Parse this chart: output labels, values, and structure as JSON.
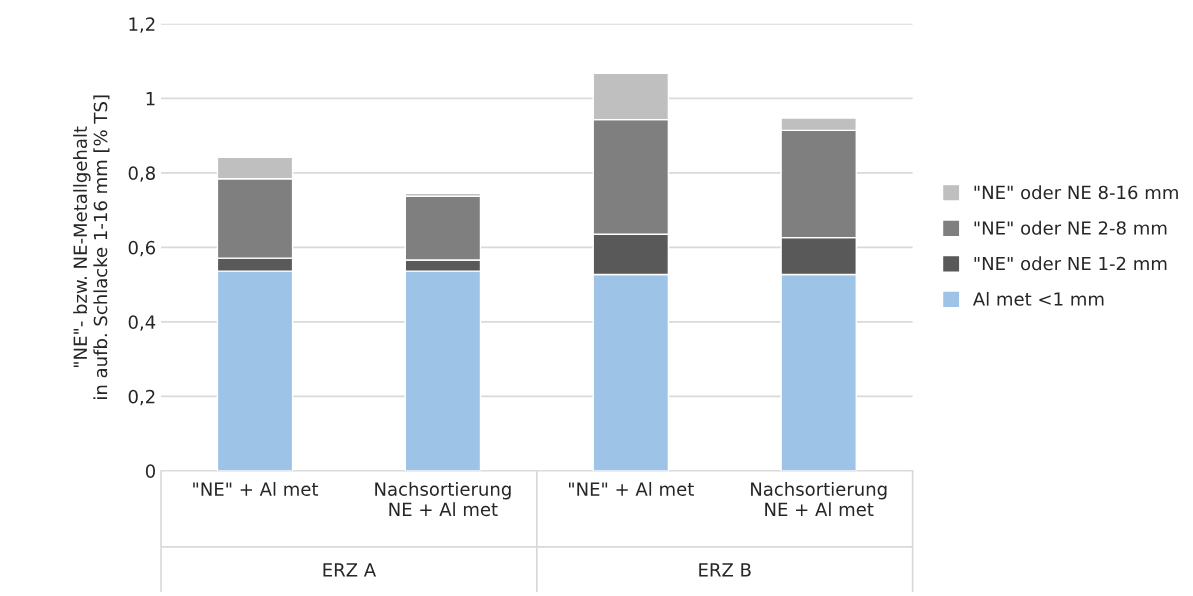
{
  "chart_data": {
    "type": "bar",
    "stacked": true,
    "ylabel": "\"NE\"- bzw. NE-Metallgehalt\nin aufb. Schlacke 1-16 mm [% TS]",
    "categories": [
      "\"NE\" + Al met",
      "Nachsortierung\nNE + Al met",
      "\"NE\" + Al met",
      "Nachsortierung\nNE + Al met"
    ],
    "annotations": [
      "ERZ A",
      "ERZ B"
    ],
    "series": [
      {
        "name": "Al met <1 mm",
        "color": "#9dc3e6",
        "values": [
          0.536,
          0.536,
          0.527,
          0.527
        ]
      },
      {
        "name": "\"NE\" oder NE 1-2 mm",
        "color": "#595959",
        "values": [
          0.035,
          0.03,
          0.108,
          0.099
        ]
      },
      {
        "name": "\"NE\" oder NE 2-8 mm",
        "color": "#7f7f7f",
        "values": [
          0.213,
          0.171,
          0.308,
          0.288
        ]
      },
      {
        "name": "\"NE\" oder NE 8-16 mm",
        "color": "#bfbfbf",
        "values": [
          0.058,
          0.008,
          0.124,
          0.033
        ]
      }
    ],
    "ylim": [
      0,
      1.2
    ],
    "yticks": [
      0,
      {
        "value": 0.2,
        "label": "0,2"
      },
      {
        "value": 0.4,
        "label": "0,4"
      },
      {
        "value": 0.6,
        "label": "0,6"
      },
      {
        "value": 0.8,
        "label": "0,8"
      },
      1,
      {
        "value": 1.2,
        "label": "1,2"
      }
    ],
    "grid": "y",
    "legend": "right"
  }
}
